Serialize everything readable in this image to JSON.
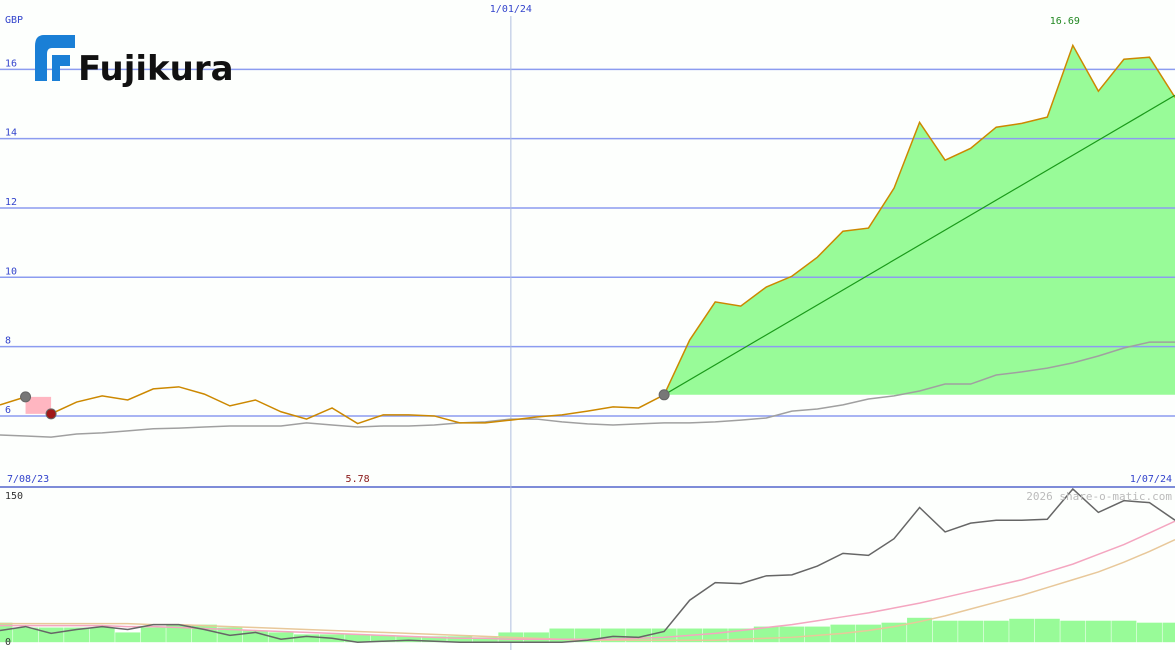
{
  "logo": {
    "text": "Fujikura"
  },
  "watermark": "2026 share-o-matic.com",
  "chart_data": [
    {
      "type": "line",
      "y_label": "GBP",
      "xlim": [
        0,
        46
      ],
      "xticks": [
        {
          "value": 0,
          "label": "7/08/23"
        },
        {
          "value": 20,
          "label": "1/01/24"
        },
        {
          "value": 46,
          "label": "1/07/24"
        }
      ],
      "ylim": [
        3.95,
        18
      ],
      "yticks": [
        6,
        8,
        10,
        12,
        14,
        16
      ],
      "grid": true,
      "series": [
        {
          "color": "#cc8800",
          "fill": "#98fb98",
          "values": [
            6.32,
            6.55,
            6.06,
            6.4,
            6.58,
            6.46,
            6.78,
            6.84,
            6.63,
            6.29,
            6.46,
            6.12,
            5.91,
            6.23,
            5.78,
            6.03,
            6.03,
            6.0,
            5.8,
            5.8,
            5.88,
            5.97,
            6.03,
            6.14,
            6.26,
            6.23,
            6.61,
            8.19,
            9.29,
            9.17,
            9.72,
            10.03,
            10.58,
            11.33,
            11.42,
            12.57,
            14.47,
            13.38,
            13.72,
            14.33,
            14.44,
            14.62,
            16.69,
            15.37,
            16.29,
            16.35,
            15.19
          ]
        },
        {
          "color": "#a0a0a0",
          "values": [
            5.45,
            5.42,
            5.39,
            5.48,
            5.51,
            5.57,
            5.63,
            5.65,
            5.68,
            5.71,
            5.71,
            5.71,
            5.8,
            5.74,
            5.68,
            5.71,
            5.71,
            5.74,
            5.8,
            5.83,
            5.91,
            5.91,
            5.83,
            5.77,
            5.74,
            5.77,
            5.8,
            5.8,
            5.83,
            5.88,
            5.94,
            6.14,
            6.2,
            6.32,
            6.49,
            6.58,
            6.72,
            6.92,
            6.92,
            7.18,
            7.27,
            7.38,
            7.53,
            7.73,
            7.96,
            8.13,
            8.13
          ]
        }
      ],
      "trend_line": {
        "x": [
          26,
          46
        ],
        "values": [
          6.61,
          15.25
        ],
        "color": "#1a9a1a"
      },
      "markers": [
        {
          "x": 1,
          "color": "#777777"
        },
        {
          "x": 2,
          "color": "#a01818"
        },
        {
          "x": 26,
          "color": "#777777"
        }
      ],
      "max_label": "16.69",
      "min_label": "5.78"
    },
    {
      "type": "line",
      "xlim": [
        0,
        46
      ],
      "ylim": [
        -8,
        158
      ],
      "yticks": [
        0,
        150
      ],
      "series": [
        {
          "kind": "bar",
          "color": "#98fb98",
          "values": [
            20,
            15,
            15,
            15,
            15,
            10,
            15,
            18,
            18,
            15,
            12,
            10,
            8,
            8,
            8,
            7,
            6,
            6,
            6,
            5,
            10,
            10,
            14,
            14,
            14,
            14,
            14,
            14,
            14,
            14,
            16,
            16,
            16,
            18,
            18,
            20,
            25,
            22,
            22,
            22,
            24,
            24,
            22,
            22,
            22,
            20,
            20
          ]
        },
        {
          "kind": "line",
          "color": "#e8c89a",
          "values": [
            19,
            19,
            19,
            19,
            19,
            19,
            18,
            18,
            17,
            16,
            15,
            14,
            13,
            12,
            11,
            10,
            9,
            8,
            7,
            6,
            5,
            4,
            3,
            2,
            2,
            2,
            2,
            2,
            2,
            3,
            4,
            5,
            7,
            9,
            12,
            16,
            21,
            27,
            34,
            41,
            48,
            56,
            64,
            72,
            82,
            93,
            105
          ]
        },
        {
          "kind": "line",
          "color": "#f4a6c0",
          "values": [
            17,
            17,
            17,
            17,
            17,
            16,
            16,
            15,
            14,
            13,
            12,
            11,
            10,
            9,
            8,
            7,
            6,
            5,
            4,
            4,
            3,
            3,
            3,
            3,
            3,
            4,
            5,
            7,
            9,
            12,
            15,
            18,
            22,
            26,
            30,
            35,
            40,
            46,
            52,
            58,
            64,
            72,
            80,
            90,
            100,
            112,
            124
          ]
        },
        {
          "kind": "line",
          "color": "#666666",
          "values": [
            12,
            16,
            9,
            13,
            16,
            13,
            18,
            18,
            13,
            7,
            10,
            3,
            6,
            4,
            0,
            1,
            2,
            1,
            0,
            0,
            0,
            0,
            0,
            2,
            6,
            5,
            11,
            43,
            61,
            60,
            68,
            69,
            78,
            91,
            89,
            106,
            138,
            113,
            122,
            125,
            125,
            126,
            157,
            133,
            145,
            143,
            125
          ]
        }
      ]
    }
  ]
}
